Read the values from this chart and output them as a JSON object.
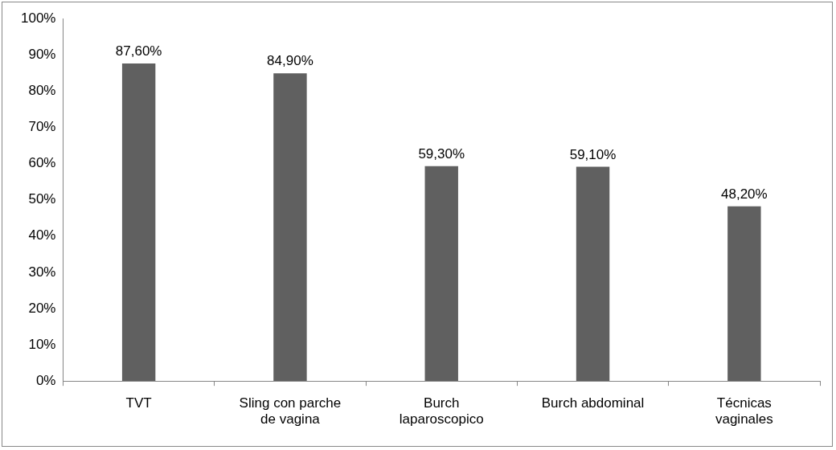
{
  "chart_data": {
    "type": "bar",
    "categories": [
      "TVT",
      "Sling con parche de vagina",
      "Burch laparoscopico",
      "Burch abdominal",
      "Técnicas vaginales"
    ],
    "values": [
      87.6,
      84.9,
      59.3,
      59.1,
      48.2
    ],
    "value_labels": [
      "87,60%",
      "84,90%",
      "59,30%",
      "59,10%",
      "48,20%"
    ],
    "color": "#606060",
    "ylim": [
      0,
      100
    ],
    "yticks": [
      {
        "value": 0,
        "label": "0%"
      },
      {
        "value": 10,
        "label": "10%"
      },
      {
        "value": 20,
        "label": "20%"
      },
      {
        "value": 30,
        "label": "30%"
      },
      {
        "value": 40,
        "label": "40%"
      },
      {
        "value": 50,
        "label": "50%"
      },
      {
        "value": 60,
        "label": "60%"
      },
      {
        "value": 70,
        "label": "70%"
      },
      {
        "value": 80,
        "label": "80%"
      },
      {
        "value": 90,
        "label": "90%"
      },
      {
        "value": 100,
        "label": "100%"
      }
    ],
    "grid": false,
    "legend": false
  }
}
